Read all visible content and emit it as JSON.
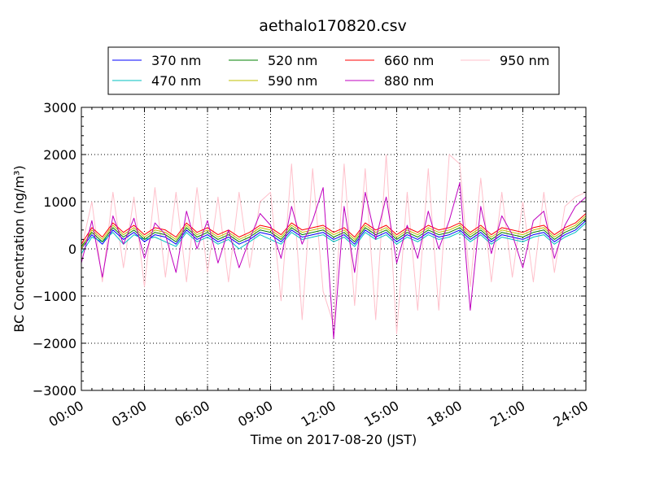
{
  "chart_data": {
    "type": "line",
    "title": "aethalo170820.csv",
    "xlabel": "Time on 2017-08-20 (JST)",
    "ylabel": "BC Concentration (ng/m³)",
    "xlim": [
      "00:00",
      "24:00"
    ],
    "ylim": [
      -3000,
      3000
    ],
    "x_ticks": [
      "00:00",
      "03:00",
      "06:00",
      "09:00",
      "12:00",
      "15:00",
      "18:00",
      "21:00",
      "24:00"
    ],
    "y_ticks": [
      "−3000",
      "−2000",
      "−1000",
      "0",
      "1000",
      "2000",
      "3000"
    ],
    "grid": true,
    "legend_position": "top",
    "x": [
      "00:00",
      "00:30",
      "01:00",
      "01:30",
      "02:00",
      "02:30",
      "03:00",
      "03:30",
      "04:00",
      "04:30",
      "05:00",
      "05:30",
      "06:00",
      "06:30",
      "07:00",
      "07:30",
      "08:00",
      "08:30",
      "09:00",
      "09:30",
      "10:00",
      "10:30",
      "11:00",
      "11:30",
      "12:00",
      "12:30",
      "13:00",
      "13:30",
      "14:00",
      "14:30",
      "15:00",
      "15:30",
      "16:00",
      "16:30",
      "17:00",
      "17:30",
      "18:00",
      "18:30",
      "19:00",
      "19:30",
      "20:00",
      "20:30",
      "21:00",
      "21:30",
      "22:00",
      "22:30",
      "23:00",
      "23:30",
      "24:00"
    ],
    "series": [
      {
        "name": "370 nm",
        "color": "#0000ff",
        "values": [
          0,
          300,
          100,
          400,
          200,
          350,
          150,
          300,
          250,
          100,
          400,
          200,
          300,
          150,
          250,
          100,
          200,
          350,
          300,
          150,
          400,
          250,
          300,
          350,
          200,
          300,
          100,
          400,
          250,
          350,
          150,
          300,
          200,
          350,
          250,
          300,
          400,
          200,
          350,
          150,
          300,
          250,
          200,
          300,
          350,
          150,
          300,
          400,
          600
        ]
      },
      {
        "name": "470 nm",
        "color": "#00bfbf",
        "values": [
          -100,
          250,
          150,
          350,
          100,
          300,
          200,
          250,
          150,
          50,
          350,
          150,
          250,
          100,
          200,
          0,
          150,
          300,
          200,
          100,
          350,
          200,
          250,
          300,
          150,
          250,
          50,
          350,
          200,
          300,
          100,
          250,
          150,
          300,
          200,
          250,
          350,
          150,
          300,
          100,
          250,
          200,
          150,
          250,
          300,
          100,
          250,
          350,
          550
        ]
      },
      {
        "name": "520 nm",
        "color": "#008000",
        "values": [
          50,
          350,
          150,
          450,
          250,
          400,
          200,
          350,
          300,
          150,
          450,
          250,
          350,
          200,
          300,
          150,
          250,
          400,
          350,
          200,
          450,
          300,
          350,
          400,
          250,
          350,
          150,
          450,
          300,
          400,
          200,
          350,
          250,
          400,
          300,
          350,
          450,
          250,
          400,
          200,
          350,
          300,
          250,
          350,
          400,
          200,
          350,
          450,
          650
        ]
      },
      {
        "name": "590 nm",
        "color": "#bfbf00",
        "values": [
          0,
          400,
          200,
          500,
          300,
          450,
          250,
          400,
          350,
          200,
          500,
          300,
          400,
          250,
          350,
          200,
          300,
          450,
          400,
          250,
          500,
          350,
          400,
          450,
          300,
          400,
          200,
          500,
          350,
          450,
          250,
          400,
          300,
          450,
          350,
          400,
          500,
          300,
          450,
          250,
          400,
          350,
          300,
          400,
          450,
          250,
          400,
          500,
          700
        ]
      },
      {
        "name": "660 nm",
        "color": "#ff0000",
        "values": [
          100,
          450,
          250,
          550,
          350,
          500,
          300,
          450,
          400,
          250,
          550,
          350,
          450,
          300,
          400,
          250,
          350,
          500,
          450,
          300,
          550,
          400,
          450,
          500,
          350,
          450,
          250,
          550,
          400,
          500,
          300,
          450,
          350,
          500,
          400,
          450,
          550,
          350,
          500,
          300,
          450,
          400,
          350,
          450,
          500,
          300,
          450,
          550,
          750
        ]
      },
      {
        "name": "880 nm",
        "color": "#bf00bf",
        "values": [
          -300,
          600,
          -600,
          700,
          100,
          650,
          -200,
          550,
          300,
          -500,
          800,
          0,
          600,
          -300,
          400,
          -400,
          200,
          750,
          500,
          -200,
          900,
          100,
          600,
          1300,
          -1900,
          900,
          -500,
          1200,
          200,
          1100,
          -300,
          500,
          -200,
          800,
          0,
          600,
          1400,
          -1300,
          900,
          -100,
          700,
          300,
          -400,
          600,
          800,
          -200,
          500,
          900,
          1100
        ]
      },
      {
        "name": "950 nm",
        "color": "#ffc0cb",
        "values": [
          0,
          1000,
          -700,
          1200,
          -400,
          1100,
          -800,
          1300,
          -600,
          1200,
          -700,
          1300,
          -500,
          1100,
          -700,
          1200,
          -400,
          1000,
          1200,
          -1100,
          1800,
          -1500,
          1700,
          -900,
          -1600,
          1800,
          -1200,
          1700,
          -1500,
          2000,
          -1800,
          1200,
          -1300,
          1700,
          -1300,
          2000,
          1800,
          -800,
          1500,
          -700,
          1200,
          -600,
          1000,
          -700,
          1200,
          -500,
          900,
          1100,
          1200
        ]
      }
    ]
  }
}
